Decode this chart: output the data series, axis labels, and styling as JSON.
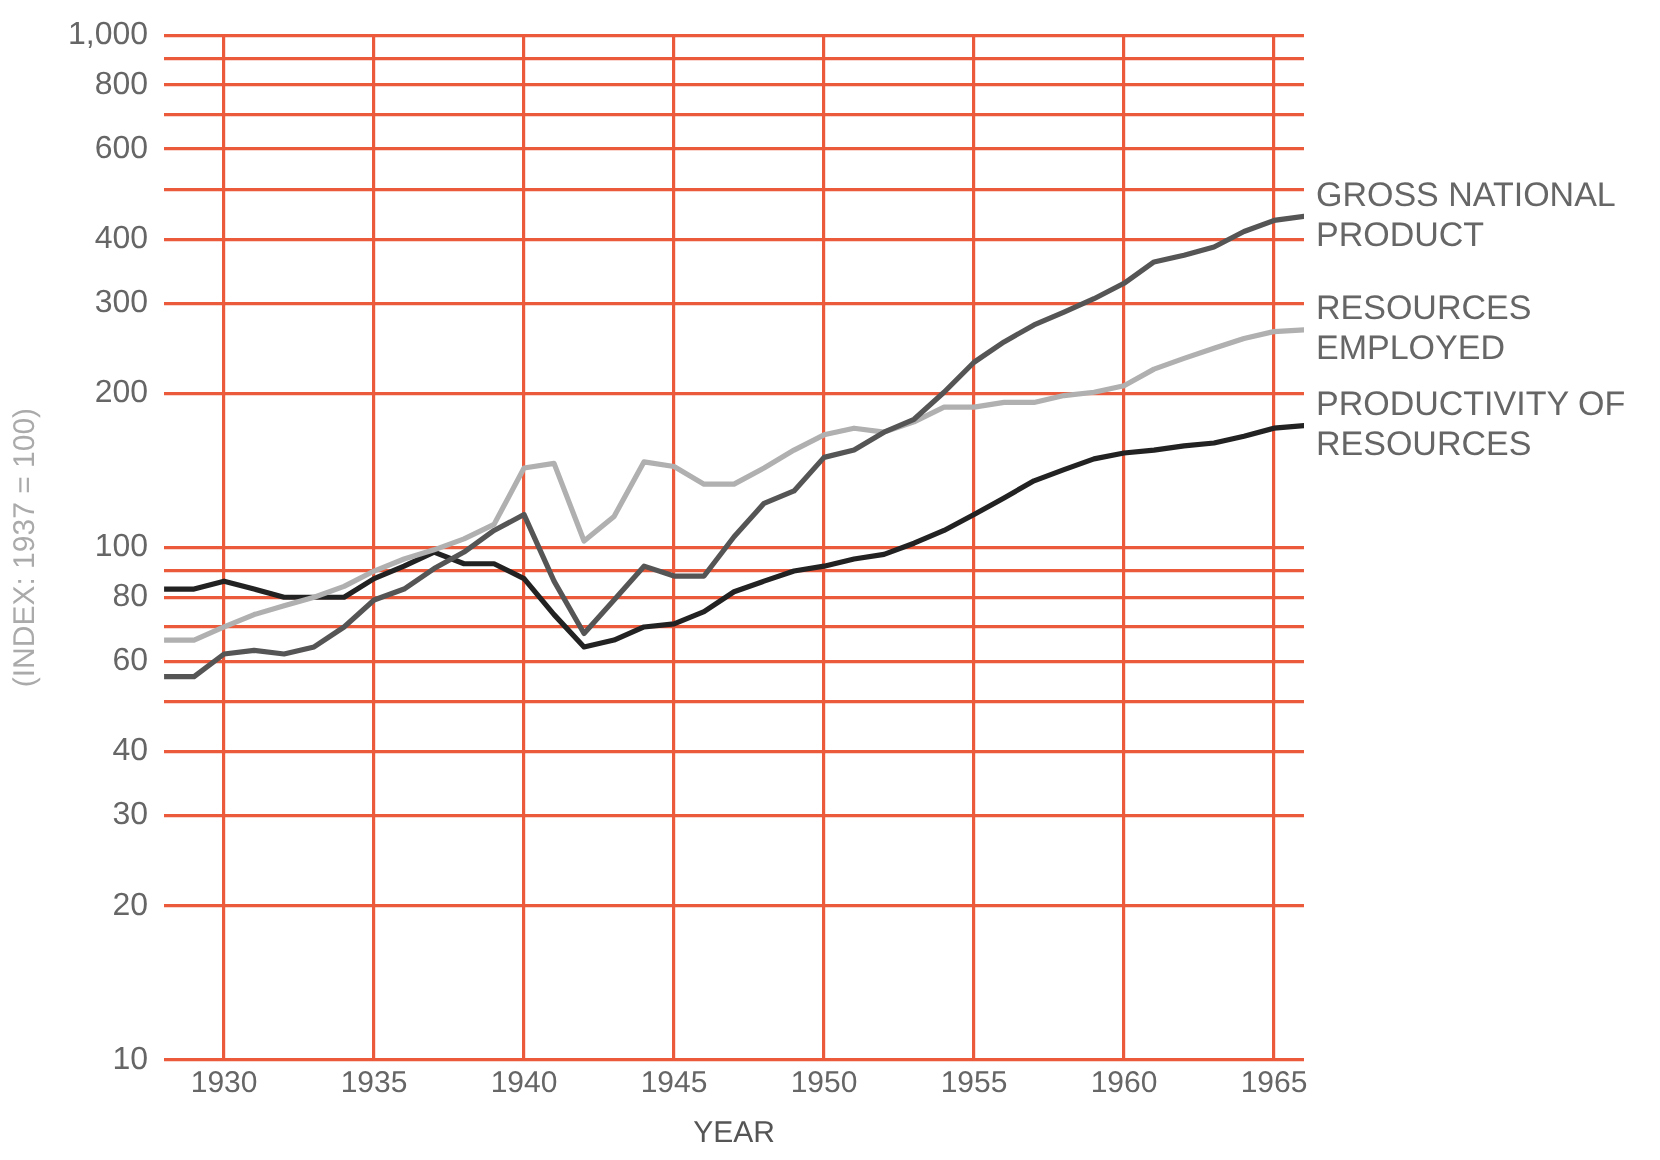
{
  "chart_data": {
    "type": "line",
    "xlabel": "YEAR",
    "ylabel": "(INDEX: 1937 = 100)",
    "x": [
      1928,
      1929,
      1930,
      1931,
      1932,
      1933,
      1934,
      1935,
      1936,
      1937,
      1938,
      1939,
      1940,
      1941,
      1942,
      1943,
      1944,
      1945,
      1946,
      1947,
      1948,
      1949,
      1950,
      1951,
      1952,
      1953,
      1954,
      1955,
      1956,
      1957,
      1958,
      1959,
      1960,
      1961,
      1962,
      1963,
      1964,
      1965,
      1966
    ],
    "series": [
      {
        "name": "GROSS NATIONAL PRODUCT",
        "color": "#555555",
        "values": [
          56,
          56,
          62,
          63,
          62,
          64,
          70,
          79,
          83,
          91,
          98,
          108,
          116,
          86,
          68,
          79,
          92,
          88,
          88,
          105,
          122,
          129,
          150,
          155,
          168,
          178,
          201,
          230,
          252,
          272,
          288,
          306,
          328,
          361,
          372,
          386,
          414,
          435,
          443
        ]
      },
      {
        "name": "RESOURCES EMPLOYED",
        "color": "#b0b0b0",
        "values": [
          66,
          66,
          70,
          74,
          77,
          80,
          84,
          90,
          95,
          99,
          104,
          111,
          143,
          146,
          103,
          115,
          147,
          144,
          133,
          133,
          143,
          155,
          166,
          171,
          168,
          176,
          188,
          188,
          192,
          192,
          198,
          201,
          207,
          223,
          234,
          245,
          256,
          264,
          266
        ]
      },
      {
        "name": "PRODUCTIVITY OF RESOURCES",
        "color": "#222222",
        "values": [
          83,
          83,
          86,
          83,
          80,
          80,
          80,
          87,
          92,
          98,
          93,
          93,
          87,
          74,
          64,
          66,
          70,
          71,
          75,
          82,
          86,
          90,
          92,
          95,
          97,
          102,
          108,
          116,
          125,
          135,
          142,
          149,
          153,
          155,
          158,
          160,
          165,
          171,
          173
        ]
      }
    ],
    "xlim": [
      1928,
      1966
    ],
    "xticks": [
      1930,
      1935,
      1940,
      1945,
      1950,
      1955,
      1960,
      1965
    ],
    "log": true,
    "ylim": [
      10,
      1000
    ],
    "yticks": [
      10,
      20,
      30,
      40,
      {
        "value": 50,
        "label": null
      },
      60,
      {
        "value": 70,
        "label": null
      },
      80,
      {
        "value": 90,
        "label": null
      },
      100,
      200,
      300,
      400,
      {
        "value": 500,
        "label": null
      },
      600,
      {
        "value": 700,
        "label": null
      },
      800,
      {
        "value": 900,
        "label": null
      },
      {
        "value": 1000,
        "label": "1,000"
      }
    ],
    "grid": true,
    "legend": false,
    "marker": "none",
    "line_style": "solid"
  }
}
